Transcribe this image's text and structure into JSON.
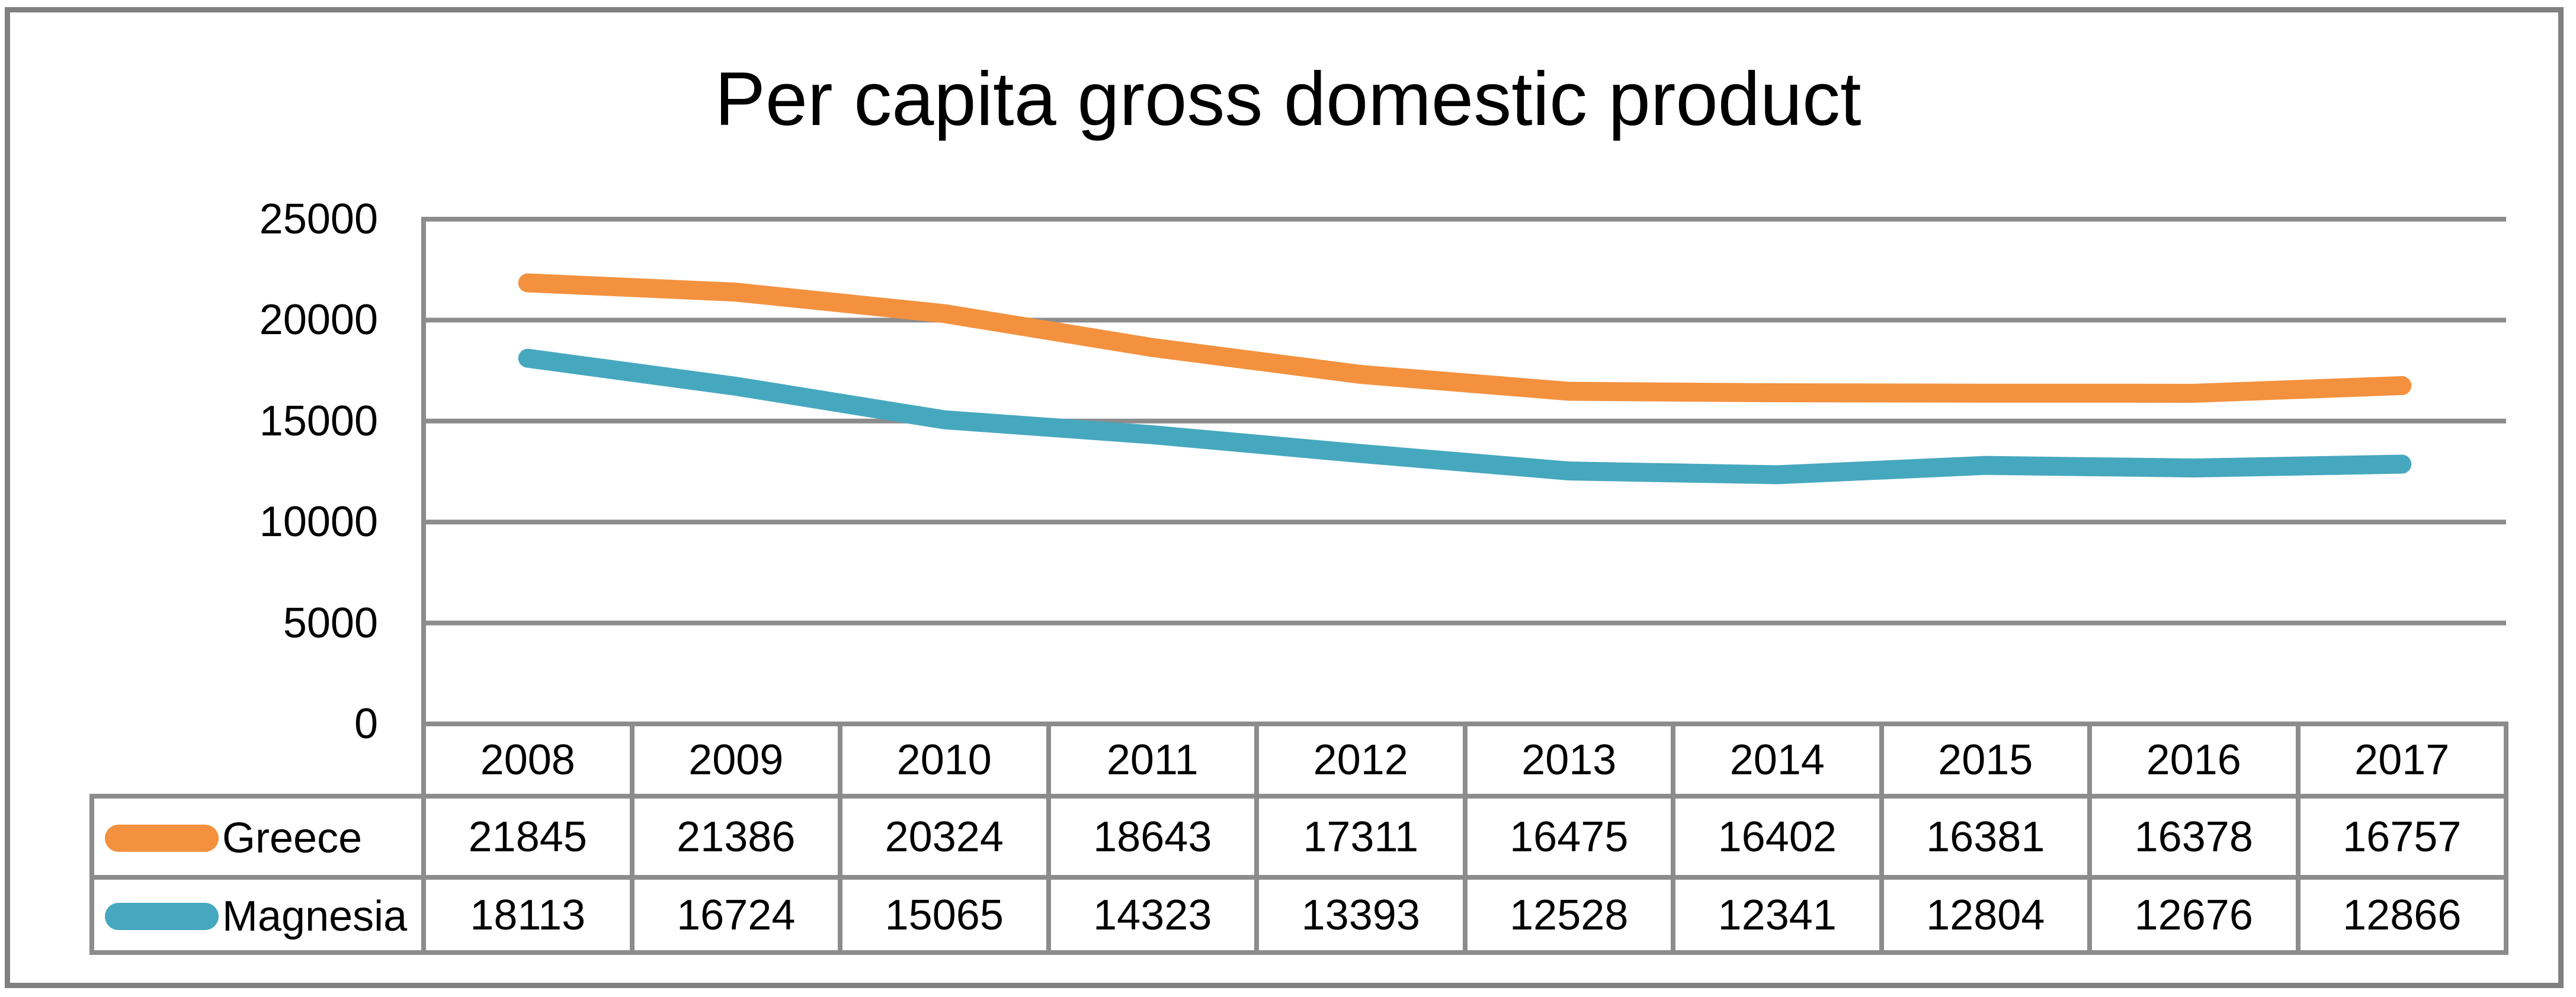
{
  "title": "Per capita gross domestic product",
  "colors": {
    "greece_line": "#F4913E",
    "magnesia_line": "#46A8BF",
    "gridline": "#8C8C8C",
    "outer_border": "#808080",
    "text": "#000000"
  },
  "chart_data": {
    "type": "line",
    "title": "Per capita gross domestic product",
    "categories": [
      "2008",
      "2009",
      "2010",
      "2011",
      "2012",
      "2013",
      "2014",
      "2015",
      "2016",
      "2017"
    ],
    "series": [
      {
        "name": "Greece",
        "color": "#F4913E",
        "values": [
          21845,
          21386,
          20324,
          18643,
          17311,
          16475,
          16402,
          16381,
          16378,
          16757
        ]
      },
      {
        "name": "Magnesia",
        "color": "#46A8BF",
        "values": [
          18113,
          16724,
          15065,
          14323,
          13393,
          12528,
          12341,
          12804,
          12676,
          12866
        ]
      }
    ],
    "xlabel": "",
    "ylabel": "",
    "ylim": [
      0,
      25000
    ],
    "yticks": [
      0,
      5000,
      10000,
      15000,
      20000,
      25000
    ],
    "grid": true,
    "legend_position": "table-left-column"
  }
}
